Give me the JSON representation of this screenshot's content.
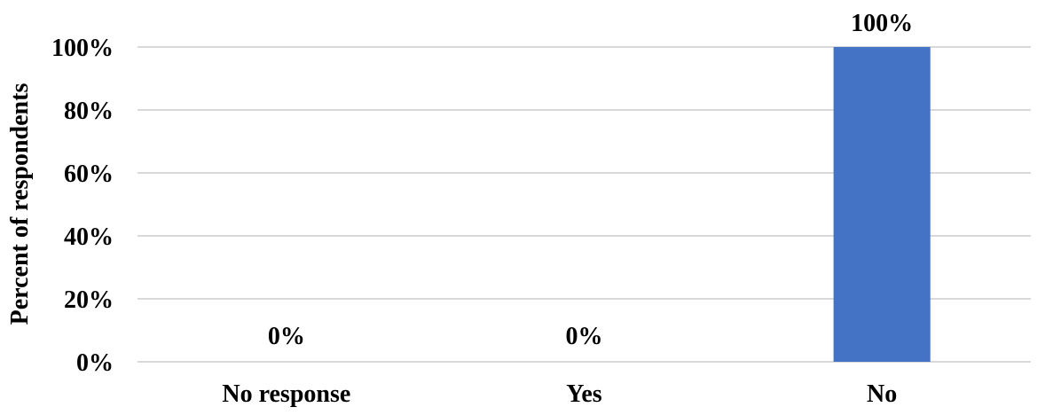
{
  "chart_data": {
    "type": "bar",
    "title": "",
    "xlabel": "",
    "ylabel": "Percent of respondents",
    "categories": [
      "No response",
      "Yes",
      "No"
    ],
    "values": [
      0,
      0,
      100
    ],
    "data_labels": [
      "0%",
      "0%",
      "100%"
    ],
    "yticks": [
      "0%",
      "20%",
      "40%",
      "60%",
      "80%",
      "100%"
    ],
    "ylim": [
      0,
      100
    ],
    "grid": true,
    "legend": "none",
    "colors": {
      "bar": "#4472C4",
      "grid": "#D9D9D9",
      "text": "#000000"
    }
  }
}
